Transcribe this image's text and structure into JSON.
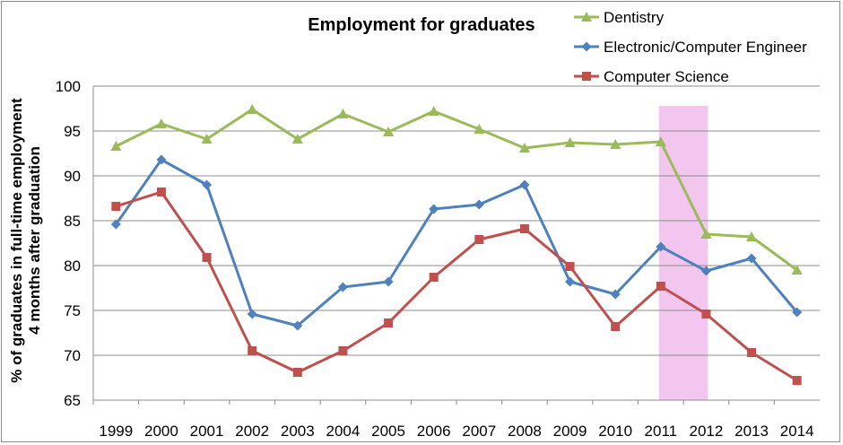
{
  "chart_data": {
    "type": "line",
    "title": "Employment for graduates",
    "ylabel_line1": "% of graduates in full-time  employment",
    "ylabel_line2": "4 months after graduation",
    "xlabel": "",
    "categories": [
      "1999",
      "2000",
      "2001",
      "2002",
      "2003",
      "2004",
      "2005",
      "2006",
      "2007",
      "2008",
      "2009",
      "2010",
      "2011",
      "2012",
      "2013",
      "2014"
    ],
    "ylim": [
      65,
      100
    ],
    "yticks": [
      65,
      70,
      75,
      80,
      85,
      90,
      95,
      100
    ],
    "grid": true,
    "legend_position": "top-right",
    "highlight_band": {
      "from": "2011",
      "to": "2012",
      "color": "#f2c6ee"
    },
    "series": [
      {
        "name": "Dentistry",
        "color": "#9bbb59",
        "marker": "triangle",
        "values": [
          93.3,
          95.8,
          94.1,
          97.4,
          94.1,
          96.9,
          94.9,
          97.2,
          95.2,
          93.1,
          93.7,
          93.5,
          93.8,
          83.5,
          83.2,
          79.5
        ]
      },
      {
        "name": "Electronic/Computer  Engineer",
        "color": "#4f81bd",
        "marker": "diamond",
        "values": [
          84.6,
          91.8,
          89.0,
          74.6,
          73.3,
          77.6,
          78.2,
          86.3,
          86.8,
          89.0,
          78.2,
          76.8,
          82.1,
          79.4,
          80.8,
          74.8
        ]
      },
      {
        "name": "Computer Science",
        "color": "#c0504d",
        "marker": "square",
        "values": [
          86.6,
          88.2,
          80.9,
          70.5,
          68.1,
          70.5,
          73.6,
          78.7,
          82.9,
          84.1,
          79.9,
          73.2,
          77.7,
          74.6,
          70.3,
          67.2
        ]
      }
    ]
  }
}
